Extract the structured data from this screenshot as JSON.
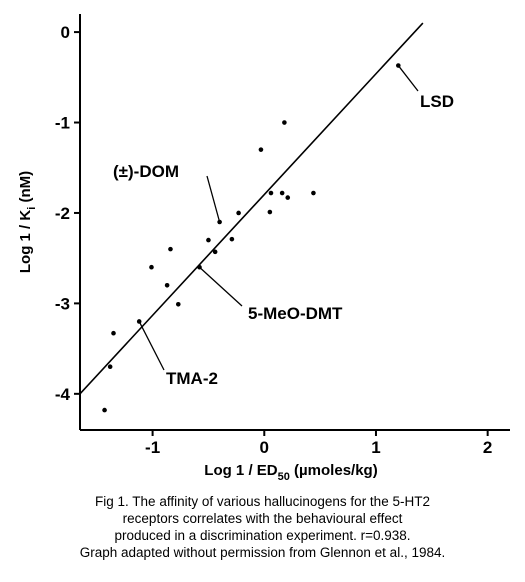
{
  "chart_data": {
    "type": "scatter",
    "xlim": [
      -1.65,
      2.2
    ],
    "ylim": [
      -4.4,
      0.2
    ],
    "x_ticks": [
      -1,
      0,
      1,
      2
    ],
    "y_ticks": [
      0,
      -1,
      -2,
      -3,
      -4
    ],
    "x_tick_labels": [
      "-1",
      "0",
      "1",
      "2"
    ],
    "y_tick_labels": [
      "0",
      "-1",
      "-2",
      "-3",
      "-4"
    ],
    "xlabel": {
      "prefix": "Log  1 / ED",
      "sub": "50",
      "suffix": " (µmoles/kg)"
    },
    "ylabel": {
      "prefix": "Log  1 / K",
      "sub": "i",
      "suffix": " (nM)"
    },
    "grid": false,
    "points": [
      {
        "x": -1.43,
        "y": -4.18
      },
      {
        "x": -1.38,
        "y": -3.7
      },
      {
        "x": -1.35,
        "y": -3.33
      },
      {
        "x": -1.12,
        "y": -3.2
      },
      {
        "x": -1.01,
        "y": -2.6
      },
      {
        "x": -0.87,
        "y": -2.8
      },
      {
        "x": -0.84,
        "y": -2.4
      },
      {
        "x": -0.77,
        "y": -3.01
      },
      {
        "x": -0.58,
        "y": -2.6
      },
      {
        "x": -0.5,
        "y": -2.3
      },
      {
        "x": -0.44,
        "y": -2.43
      },
      {
        "x": -0.4,
        "y": -2.1
      },
      {
        "x": -0.29,
        "y": -2.29
      },
      {
        "x": -0.23,
        "y": -2.0
      },
      {
        "x": -0.03,
        "y": -1.3
      },
      {
        "x": 0.05,
        "y": -1.99
      },
      {
        "x": 0.06,
        "y": -1.78
      },
      {
        "x": 0.16,
        "y": -1.78
      },
      {
        "x": 0.18,
        "y": -1.0
      },
      {
        "x": 0.21,
        "y": -1.83
      },
      {
        "x": 0.44,
        "y": -1.78
      },
      {
        "x": 1.2,
        "y": -0.37
      }
    ],
    "fit_line": {
      "x1": -1.65,
      "y1": -4.0,
      "x2": 1.42,
      "y2": 0.1
    },
    "annotations": [
      {
        "label": "LSD",
        "point": {
          "x": 1.2,
          "y": -0.37
        }
      },
      {
        "label": "(±)-DOM",
        "point": {
          "x": -0.4,
          "y": -2.1
        }
      },
      {
        "label": "5-MeO-DMT",
        "point": {
          "x": -0.58,
          "y": -2.6
        }
      },
      {
        "label": "TMA-2",
        "point": {
          "x": -1.12,
          "y": -3.2
        }
      }
    ]
  },
  "caption": [
    "Fig 1. The affinity of various hallucinogens for the 5-HT2",
    "receptors correlates with the behavioural effect",
    "produced in a discrimination experiment. r=0.938.",
    "Graph adapted without permission from Glennon et al., 1984."
  ]
}
